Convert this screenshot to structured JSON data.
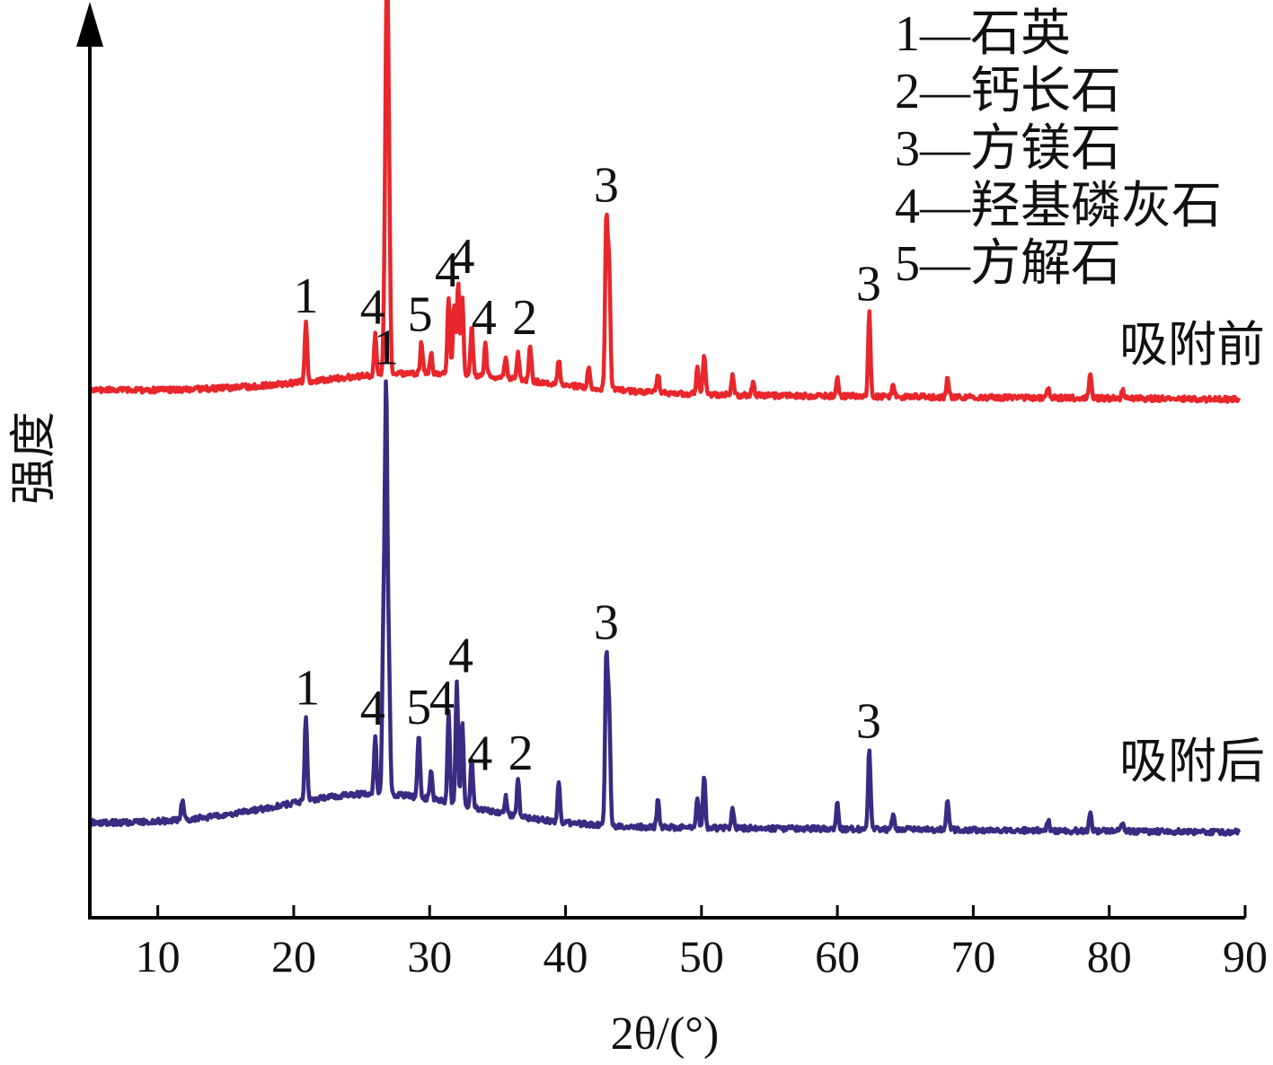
{
  "chart_data": {
    "type": "line",
    "xlabel": "2θ/(°)",
    "ylabel": "强度",
    "xlim": [
      5,
      90
    ],
    "x_ticks": [
      "10",
      "20",
      "30",
      "40",
      "50",
      "60",
      "70",
      "80",
      "90"
    ],
    "y_ticks": [],
    "grid": false,
    "legend_placement": "top-right",
    "legend": [
      "1—石英",
      "2—钙长石",
      "3—方镁石",
      "4—羟基磷灰石",
      "5—方解石"
    ],
    "series": [
      {
        "name": "吸附前",
        "color": "#e8262b",
        "baseline": 440,
        "hump": {
          "center": 30,
          "width": 8,
          "height": 22
        },
        "peaks": [
          {
            "x": 20.9,
            "h": 65
          },
          {
            "x": 26.0,
            "h": 45
          },
          {
            "x": 26.7,
            "h": 100
          },
          {
            "x": 26.85,
            "h": 385
          },
          {
            "x": 27.0,
            "h": 210
          },
          {
            "x": 29.4,
            "h": 35
          },
          {
            "x": 30.1,
            "h": 22
          },
          {
            "x": 31.4,
            "h": 85
          },
          {
            "x": 31.8,
            "h": 80
          },
          {
            "x": 32.1,
            "h": 100
          },
          {
            "x": 32.4,
            "h": 85
          },
          {
            "x": 33.1,
            "h": 55
          },
          {
            "x": 34.1,
            "h": 35
          },
          {
            "x": 35.6,
            "h": 22
          },
          {
            "x": 36.5,
            "h": 30
          },
          {
            "x": 37.4,
            "h": 40
          },
          {
            "x": 39.5,
            "h": 28
          },
          {
            "x": 41.7,
            "h": 20
          },
          {
            "x": 43.0,
            "h": 185
          },
          {
            "x": 43.2,
            "h": 140
          },
          {
            "x": 46.8,
            "h": 22
          },
          {
            "x": 49.7,
            "h": 28
          },
          {
            "x": 50.2,
            "h": 45
          },
          {
            "x": 52.3,
            "h": 22
          },
          {
            "x": 53.8,
            "h": 15
          },
          {
            "x": 60.0,
            "h": 20
          },
          {
            "x": 62.35,
            "h": 95
          },
          {
            "x": 64.1,
            "h": 15
          },
          {
            "x": 68.1,
            "h": 22
          },
          {
            "x": 75.5,
            "h": 10
          },
          {
            "x": 78.6,
            "h": 30
          },
          {
            "x": 81.0,
            "h": 10
          }
        ],
        "peak_labels": [
          {
            "x": 20.9,
            "text": "1"
          },
          {
            "x": 26.8,
            "text": "1"
          },
          {
            "x": 25.8,
            "text": "4"
          },
          {
            "x": 29.3,
            "text": "5"
          },
          {
            "x": 31.3,
            "text": "4"
          },
          {
            "x": 32.4,
            "text": "4"
          },
          {
            "x": 34.0,
            "text": "4"
          },
          {
            "x": 37.0,
            "text": "2"
          },
          {
            "x": 43.0,
            "text": "3"
          },
          {
            "x": 62.3,
            "text": "3"
          }
        ]
      },
      {
        "name": "吸附后",
        "color": "#3a2a82",
        "baseline": 922,
        "hump": {
          "center": 26,
          "width": 7,
          "height": 35
        },
        "peaks": [
          {
            "x": 11.8,
            "h": 22
          },
          {
            "x": 20.9,
            "h": 95
          },
          {
            "x": 26.0,
            "h": 65
          },
          {
            "x": 26.6,
            "h": 180
          },
          {
            "x": 26.8,
            "h": 440
          },
          {
            "x": 27.0,
            "h": 140
          },
          {
            "x": 29.2,
            "h": 70
          },
          {
            "x": 30.1,
            "h": 30
          },
          {
            "x": 31.4,
            "h": 100
          },
          {
            "x": 32.0,
            "h": 135
          },
          {
            "x": 32.4,
            "h": 95
          },
          {
            "x": 33.1,
            "h": 55
          },
          {
            "x": 35.6,
            "h": 20
          },
          {
            "x": 36.5,
            "h": 40
          },
          {
            "x": 39.5,
            "h": 45
          },
          {
            "x": 43.0,
            "h": 185
          },
          {
            "x": 43.2,
            "h": 130
          },
          {
            "x": 46.8,
            "h": 30
          },
          {
            "x": 49.7,
            "h": 35
          },
          {
            "x": 50.2,
            "h": 55
          },
          {
            "x": 52.3,
            "h": 22
          },
          {
            "x": 60.0,
            "h": 30
          },
          {
            "x": 62.35,
            "h": 90
          },
          {
            "x": 64.1,
            "h": 15
          },
          {
            "x": 68.1,
            "h": 35
          },
          {
            "x": 75.5,
            "h": 12
          },
          {
            "x": 78.6,
            "h": 22
          },
          {
            "x": 81.0,
            "h": 10
          }
        ],
        "peak_labels": [
          {
            "x": 21.0,
            "text": "1"
          },
          {
            "x": 26.8,
            "text": "1"
          },
          {
            "x": 25.8,
            "text": "4"
          },
          {
            "x": 29.2,
            "text": "5"
          },
          {
            "x": 30.9,
            "text": "4"
          },
          {
            "x": 32.3,
            "text": "4"
          },
          {
            "x": 33.7,
            "text": "4"
          },
          {
            "x": 36.7,
            "text": "2"
          },
          {
            "x": 43.0,
            "text": "3"
          },
          {
            "x": 62.3,
            "text": "3"
          }
        ]
      }
    ]
  }
}
